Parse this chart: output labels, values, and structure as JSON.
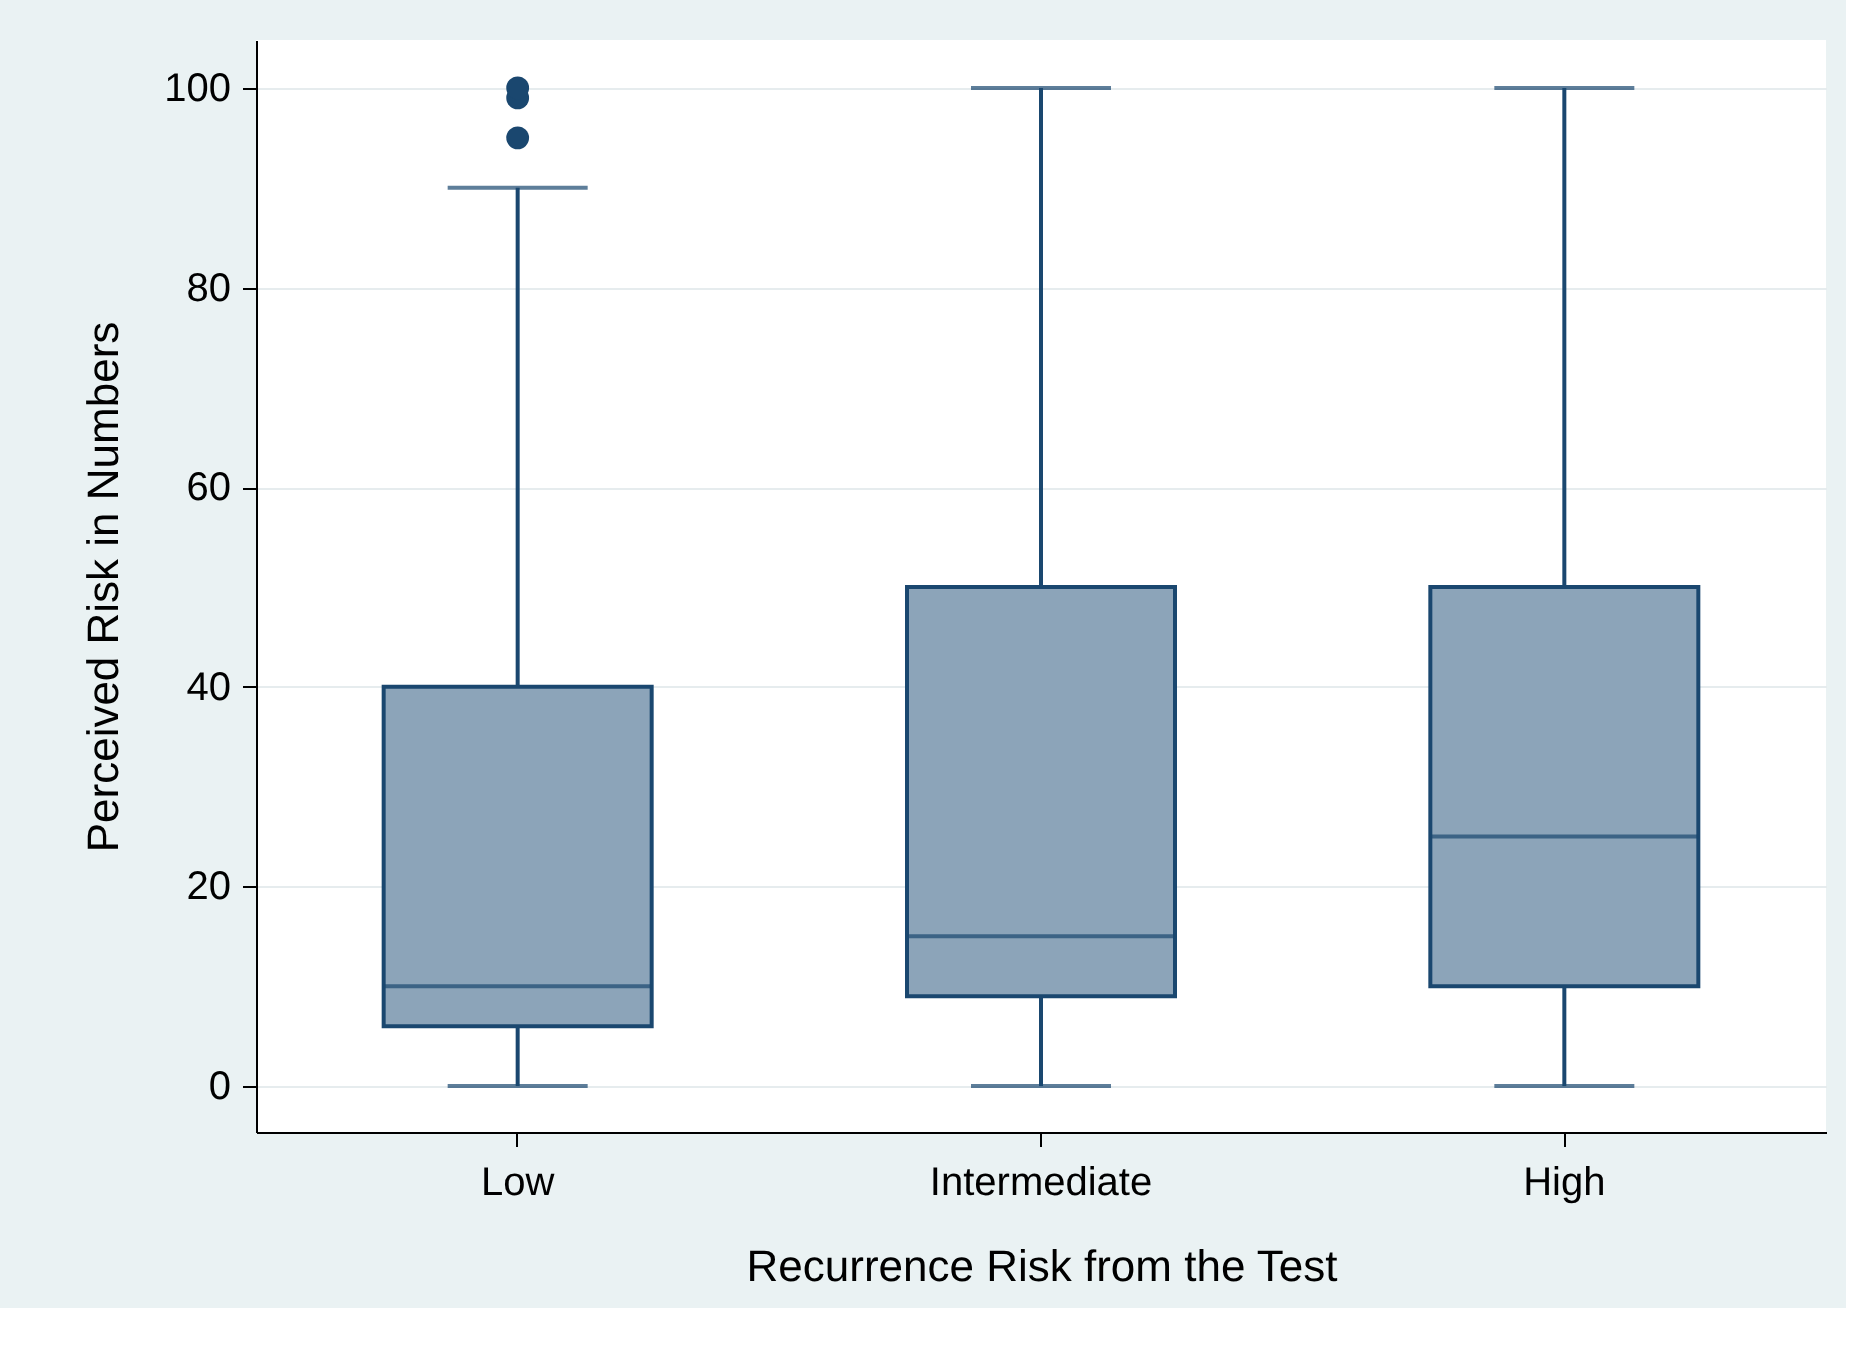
{
  "chart_data": {
    "type": "box",
    "xlabel": "Recurrence Risk from the Test",
    "ylabel": "Perceived Risk in Numbers",
    "categories": [
      "Low",
      "Intermediate",
      "High"
    ],
    "boxes": [
      {
        "low": 0,
        "q1": 6,
        "median": 10,
        "q3": 40,
        "high": 90,
        "outliers": [
          95,
          99,
          100
        ]
      },
      {
        "low": 0,
        "q1": 9,
        "median": 15,
        "q3": 50,
        "high": 100
      },
      {
        "low": 0,
        "q1": 10,
        "median": 25,
        "q3": 50,
        "high": 100
      }
    ],
    "color": "#1a476f",
    "colors": [
      "#8ca4b9",
      "#8ca4b9",
      "#8ca4b9"
    ],
    "ylim": [
      -4.6,
      104.8
    ],
    "yticks": [
      0,
      20,
      40,
      60,
      80,
      100
    ],
    "grid": "y"
  }
}
